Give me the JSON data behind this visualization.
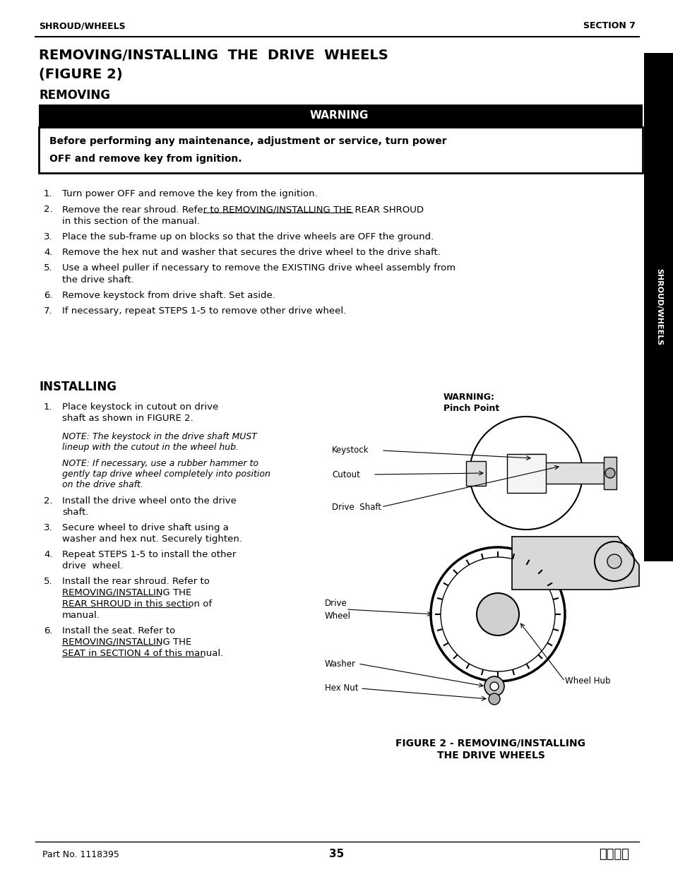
{
  "page_width": 9.54,
  "page_height": 12.35,
  "bg_color": "#ffffff",
  "header_left": "SHROUD/WHEELS",
  "header_right": "SECTION 7",
  "title_line1": "REMOVING/INSTALLING  THE  DRIVE  WHEELS",
  "title_line2": "(FIGURE 2)",
  "section_removing": "REMOVING",
  "warning_title": "WARNING",
  "warning_text_line1": "Before performing any maintenance, adjustment or service, turn power",
  "warning_text_line2": "OFF and remove key from ignition.",
  "removing_steps": [
    "Turn power OFF and remove the key from the ignition.",
    "Remove the rear shroud. Refer to REMOVING/INSTALLING THE REAR SHROUD\nin this section of the manual.",
    "Place the sub-frame up on blocks so that the drive wheels are OFF the ground.",
    "Remove the hex nut and washer that secures the drive wheel to the drive shaft.",
    "Use a wheel puller if necessary to remove the EXISTING drive wheel assembly from\nthe drive shaft.",
    "Remove keystock from drive shaft. Set aside.",
    "If necessary, repeat STEPS 1-5 to remove other drive wheel."
  ],
  "section_installing": "INSTALLING",
  "installing_steps_left": [
    "Place keystock in cutout on drive\nshaft as shown in FIGURE 2.",
    "Install the drive wheel onto the drive\nshaft.",
    "Secure wheel to drive shaft using a\nwasher and hex nut. Securely tighten.",
    "Repeat STEPS 1-5 to install the other\ndrive  wheel.",
    "Install the rear shroud. Refer to\nREMOVING/INSTALLING THE\nREAR SHROUD in this section of\nmanual.",
    "Install the seat. Refer to\nREMOVING/INSTALLING THE\nSEAT in SECTION 4 of this manual."
  ],
  "note1_line1": "NOTE: The keystock in the drive shaft MUST",
  "note1_line2": "lineup with the cutout in the wheel hub.",
  "note2_line1": "NOTE: If necessary, use a rubber hammer to",
  "note2_line2": "gently tap drive wheel completely into position",
  "note2_line3": "on the drive shaft.",
  "warning_pinch_line1": "WARNING:",
  "warning_pinch_line2": "Pinch Point",
  "figure_caption_line1": "FIGURE 2 - REMOVING/INSTALLING",
  "figure_caption_line2": "THE DRIVE WHEELS",
  "footer_left": "Part No. 1118395",
  "footer_center": "35",
  "sidebar_text": "SHROUD/WHEELS",
  "sidebar_bg": "#000000",
  "sidebar_text_color": "#ffffff"
}
